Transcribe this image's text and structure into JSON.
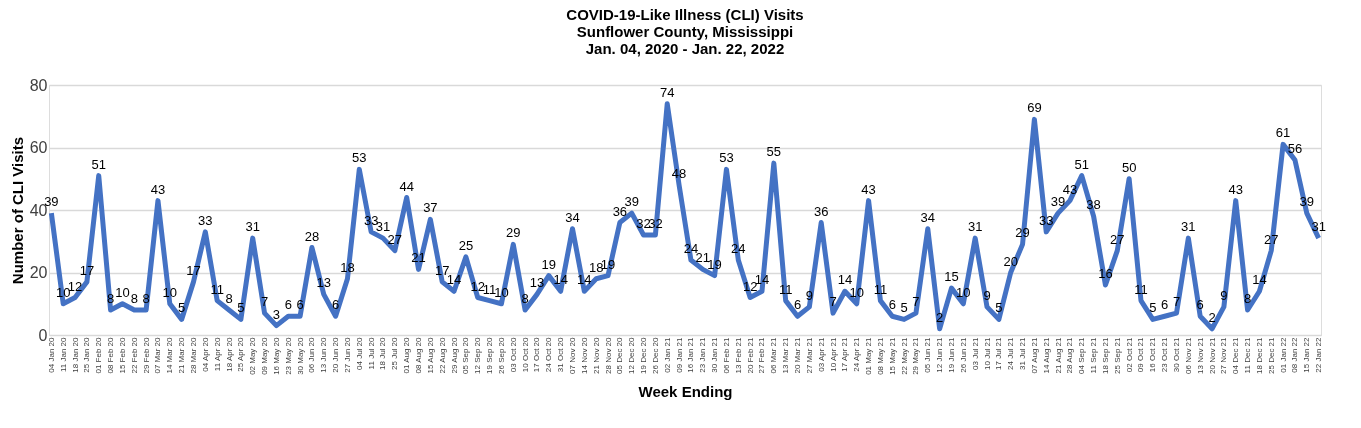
{
  "chart_data": {
    "type": "line",
    "title": [
      "COVID-19-Like Illness (CLI) Visits",
      "Sunflower County, Mississippi",
      "Jan. 04, 2020 - Jan. 22, 2022"
    ],
    "xlabel": "Week Ending",
    "ylabel": "Number of CLI Visits",
    "categories": [
      "04 Jan 20",
      "11 Jan 20",
      "18 Jan 20",
      "25 Jan 20",
      "01 Feb 20",
      "08 Feb 20",
      "15 Feb 20",
      "22 Feb 20",
      "29 Feb 20",
      "07 Mar 20",
      "14 Mar 20",
      "21 Mar 20",
      "28 Mar 20",
      "04 Apr 20",
      "11 Apr 20",
      "18 Apr 20",
      "25 Apr 20",
      "02 May 20",
      "09 May 20",
      "16 May 20",
      "23 May 20",
      "30 May 20",
      "06 Jun 20",
      "13 Jun 20",
      "20 Jun 20",
      "27 Jun 20",
      "04 Jul 20",
      "11 Jul 20",
      "18 Jul 20",
      "25 Jul 20",
      "01 Aug 20",
      "08 Aug 20",
      "15 Aug 20",
      "22 Aug 20",
      "29 Aug 20",
      "05 Sep 20",
      "12 Sep 20",
      "19 Sep 20",
      "26 Sep 20",
      "03 Oct 20",
      "10 Oct 20",
      "17 Oct 20",
      "24 Oct 20",
      "31 Oct 20",
      "07 Nov 20",
      "14 Nov 20",
      "21 Nov 20",
      "28 Nov 20",
      "05 Dec 20",
      "12 Dec 20",
      "19 Dec 20",
      "26 Dec 20",
      "02 Jan 21",
      "09 Jan 21",
      "16 Jan 21",
      "23 Jan 21",
      "30 Jan 21",
      "06 Feb 21",
      "13 Feb 21",
      "20 Feb 21",
      "27 Feb 21",
      "06 Mar 21",
      "13 Mar 21",
      "20 Mar 21",
      "27 Mar 21",
      "03 Apr 21",
      "10 Apr 21",
      "17 Apr 21",
      "24 Apr 21",
      "01 May 21",
      "08 May 21",
      "15 May 21",
      "22 May 21",
      "29 May 21",
      "05 Jun 21",
      "12 Jun 21",
      "19 Jun 21",
      "26 Jun 21",
      "03 Jul 21",
      "10 Jul 21",
      "17 Jul 21",
      "24 Jul 21",
      "31 Jul 21",
      "07 Aug 21",
      "14 Aug 21",
      "21 Aug 21",
      "28 Aug 21",
      "04 Sep 21",
      "11 Sep 21",
      "18 Sep 21",
      "25 Sep 21",
      "02 Oct 21",
      "09 Oct 21",
      "16 Oct 21",
      "23 Oct 21",
      "30 Oct 21",
      "06 Nov 21",
      "13 Nov 21",
      "20 Nov 21",
      "27 Nov 21",
      "04 Dec 21",
      "11 Dec 21",
      "18 Dec 21",
      "25 Dec 21",
      "01 Jan 22",
      "08 Jan 22",
      "15 Jan 22",
      "22 Jan 22"
    ],
    "series": [
      {
        "color": "#4472c4",
        "values": [
          39,
          10,
          12,
          17,
          51,
          8,
          10,
          8,
          8,
          43,
          10,
          5,
          17,
          33,
          11,
          8,
          5,
          31,
          7,
          3,
          6,
          6,
          28,
          13,
          6,
          18,
          53,
          33,
          31,
          27,
          44,
          21,
          37,
          17,
          14,
          25,
          12,
          11,
          10,
          29,
          8,
          13,
          19,
          14,
          34,
          14,
          18,
          19,
          36,
          39,
          32,
          32,
          74,
          48,
          24,
          21,
          19,
          53,
          24,
          12,
          14,
          55,
          11,
          6,
          9,
          36,
          7,
          14,
          10,
          43,
          11,
          6,
          5,
          7,
          34,
          2,
          15,
          10,
          31,
          9,
          5,
          20,
          29,
          69,
          33,
          39,
          43,
          51,
          38,
          16,
          27,
          50,
          11,
          5,
          6,
          7,
          31,
          6,
          2,
          9,
          43,
          8,
          14,
          27,
          61,
          56,
          39,
          31
        ]
      }
    ],
    "ylim": [
      0,
      80
    ],
    "yticks": [
      0,
      20,
      40,
      60,
      80
    ],
    "grid": "y",
    "data_labels": true,
    "marker": "none",
    "line_style": "solid"
  }
}
